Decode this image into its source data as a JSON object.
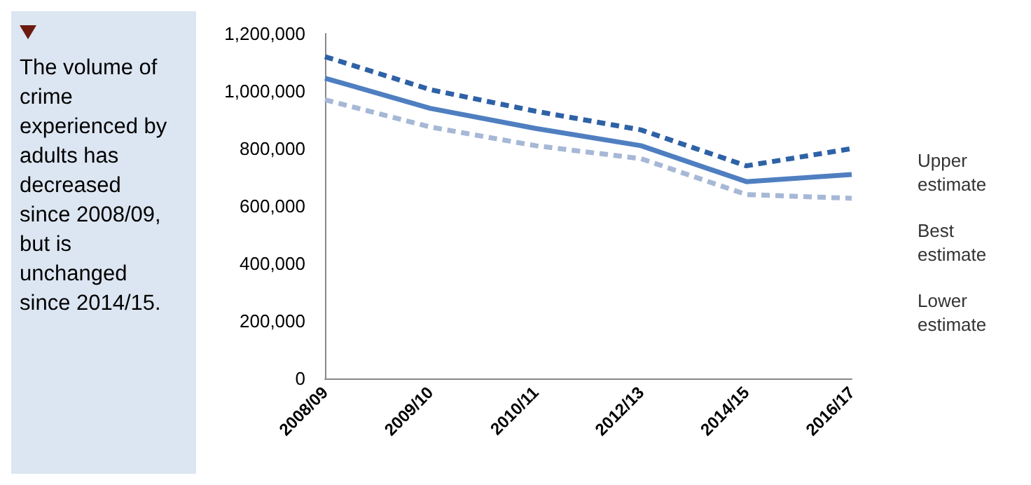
{
  "chart_data": {
    "type": "line",
    "annotations": [
      "The volume of crime experienced by adults has decreased since 2008/09, but is unchanged since 2014/15."
    ],
    "categories": [
      "2008/09",
      "2009/10",
      "2010/11",
      "2012/13",
      "2014/15",
      "2016/17"
    ],
    "ylim": [
      0,
      1200000
    ],
    "yticks": [
      0,
      {
        "value": 200000,
        "label": "200,000"
      },
      {
        "value": 400000,
        "label": "400,000"
      },
      {
        "value": 600000,
        "label": "600,000"
      },
      {
        "value": 800000,
        "label": "800,000"
      },
      {
        "value": 1000000,
        "label": "1,000,000"
      },
      {
        "value": 1200000,
        "label": "1,200,000"
      }
    ],
    "series": [
      {
        "name": "Upper estimate",
        "color": "#2e62a6",
        "line_style": "dashed",
        "values": [
          1120000,
          1005000,
          930000,
          865000,
          740000,
          800000
        ]
      },
      {
        "name": "Best estimate",
        "color": "#4f7fc0",
        "line_style": "solid",
        "values": [
          1045000,
          940000,
          870000,
          810000,
          685000,
          710000
        ]
      },
      {
        "name": "Lower estimate",
        "color": "#a6b8d6",
        "line_style": "dashed",
        "values": [
          970000,
          875000,
          810000,
          765000,
          640000,
          627000
        ]
      }
    ],
    "grid": false,
    "legend": "right",
    "marker": "none"
  }
}
